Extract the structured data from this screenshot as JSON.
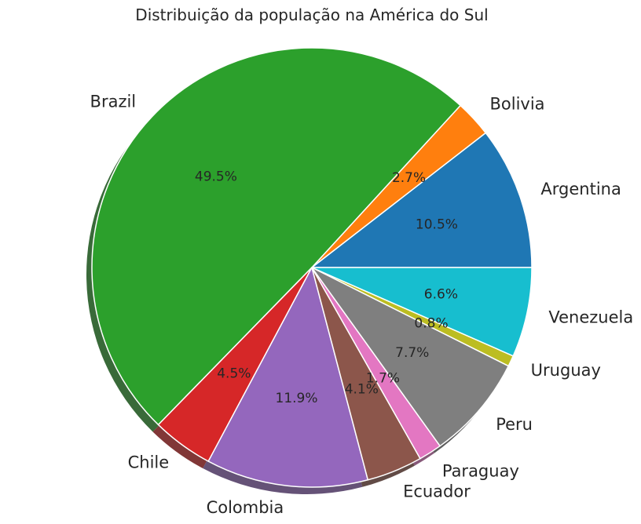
{
  "chart_data": {
    "type": "pie",
    "title": "Distribuição da população na América do Sul",
    "categories": [
      "Argentina",
      "Bolivia",
      "Brazil",
      "Chile",
      "Colombia",
      "Ecuador",
      "Paraguay",
      "Peru",
      "Uruguay",
      "Venezuela"
    ],
    "values": [
      10.5,
      2.7,
      49.5,
      4.5,
      11.9,
      4.1,
      1.7,
      7.7,
      0.8,
      6.6
    ],
    "value_labels": [
      "10.5%",
      "2.7%",
      "49.5%",
      "4.5%",
      "11.9%",
      "4.1%",
      "1.7%",
      "7.7%",
      "0.8%",
      "6.6%"
    ],
    "colors": [
      "#1f77b4",
      "#ff7f0e",
      "#2ca02c",
      "#d62728",
      "#9467bd",
      "#8c564b",
      "#e377c2",
      "#7f7f7f",
      "#bcbd22",
      "#17becf"
    ],
    "start_angle_deg": 0,
    "direction": "counterclockwise",
    "shadow": true,
    "legend": "none"
  }
}
